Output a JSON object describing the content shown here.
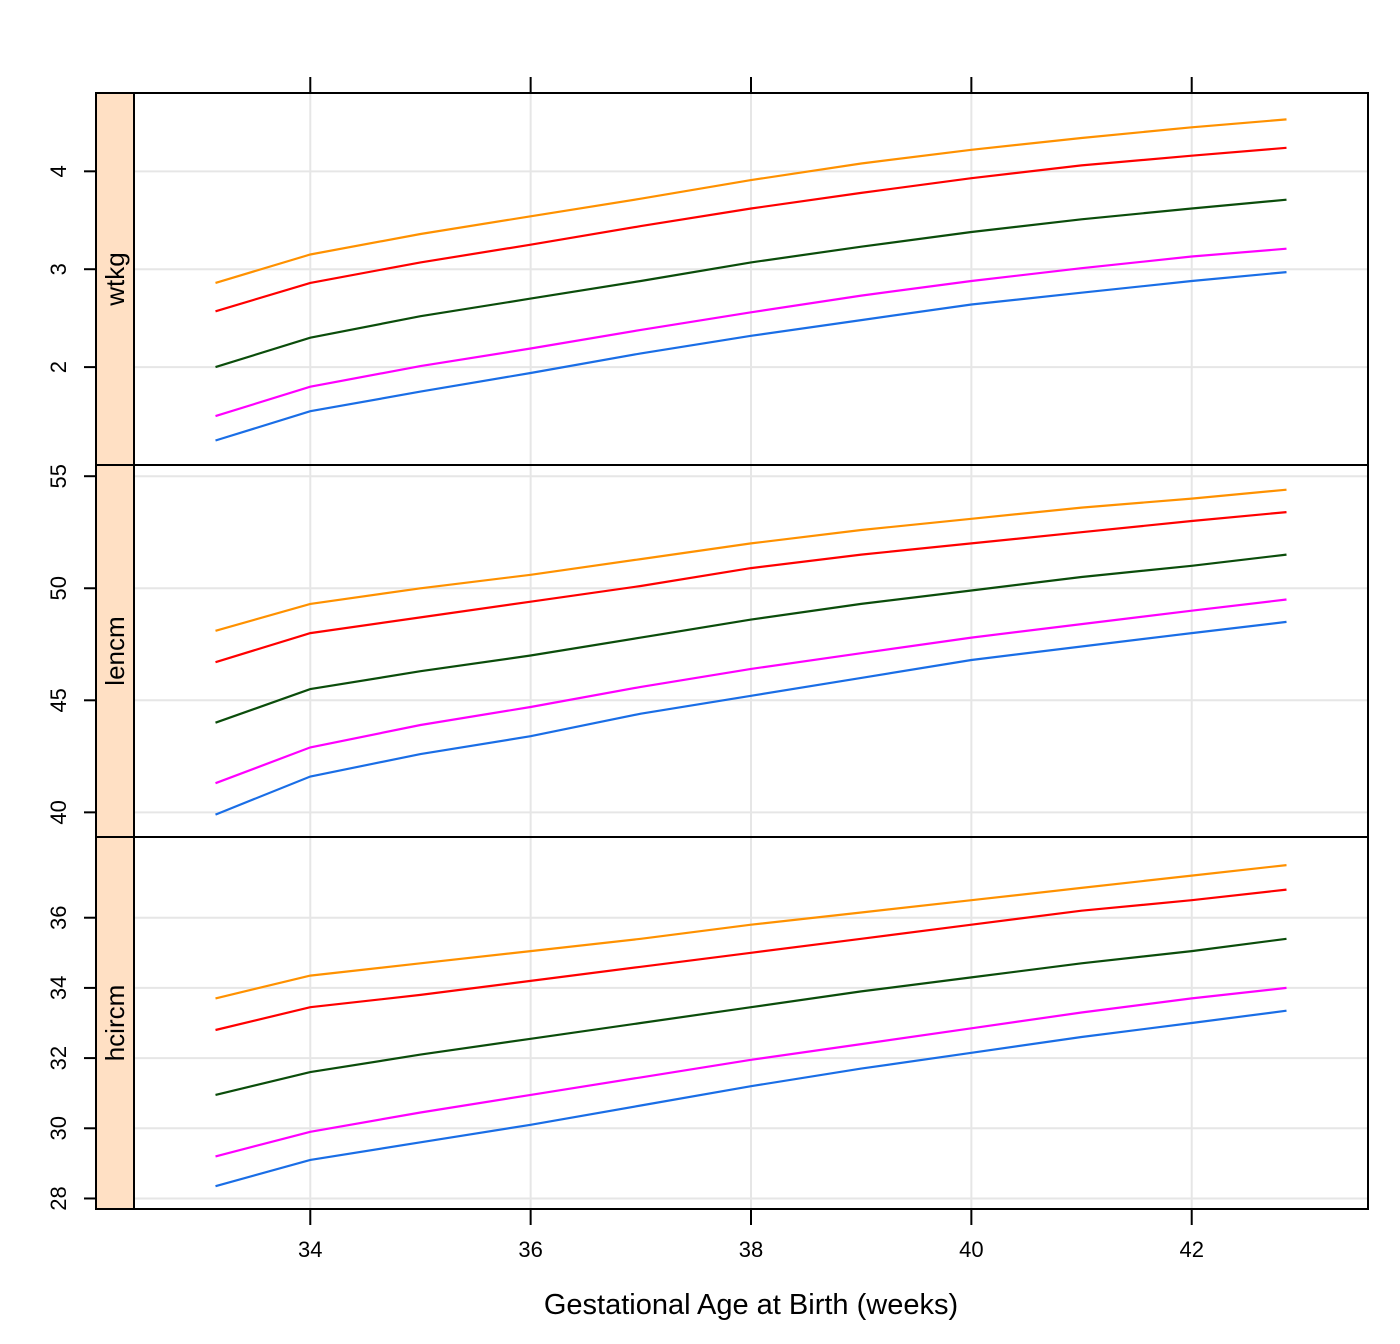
{
  "chart_data": {
    "type": "line",
    "xlabel": "Gestational Age at Birth (weeks)",
    "x_ticks": [
      34,
      36,
      38,
      40,
      42
    ],
    "xlim": [
      32.4,
      43.6
    ],
    "grid": true,
    "x": [
      33.14,
      34,
      35,
      36,
      37,
      38,
      39,
      40,
      41,
      42,
      42.86
    ],
    "series_colors": [
      "#1a6ee6",
      "#ff00ff",
      "#0b4d0b",
      "#ff0000",
      "#ff9100"
    ],
    "strip_color": "#ffe0c4",
    "panels": [
      {
        "strip": "wtkg",
        "y_ticks": [
          2,
          3,
          4
        ],
        "ylim": [
          1.0,
          4.8
        ],
        "series": [
          {
            "values": [
              1.25,
              1.55,
              1.75,
              1.94,
              2.14,
              2.32,
              2.48,
              2.64,
              2.76,
              2.88,
              2.97
            ]
          },
          {
            "values": [
              1.5,
              1.8,
              2.01,
              2.19,
              2.38,
              2.56,
              2.73,
              2.88,
              3.01,
              3.13,
              3.21
            ]
          },
          {
            "values": [
              2.0,
              2.3,
              2.52,
              2.7,
              2.88,
              3.07,
              3.23,
              3.38,
              3.51,
              3.62,
              3.71
            ]
          },
          {
            "values": [
              2.57,
              2.86,
              3.07,
              3.25,
              3.44,
              3.62,
              3.78,
              3.93,
              4.06,
              4.16,
              4.24
            ]
          },
          {
            "values": [
              2.86,
              3.15,
              3.36,
              3.54,
              3.72,
              3.91,
              4.08,
              4.22,
              4.34,
              4.45,
              4.53
            ]
          }
        ]
      },
      {
        "strip": "lencm",
        "y_ticks": [
          40,
          45,
          50,
          55
        ],
        "ylim": [
          38.9,
          55.5
        ],
        "series": [
          {
            "values": [
              39.9,
              41.6,
              42.6,
              43.4,
              44.4,
              45.2,
              46.0,
              46.8,
              47.4,
              48.0,
              48.5
            ]
          },
          {
            "values": [
              41.3,
              42.9,
              43.9,
              44.7,
              45.6,
              46.4,
              47.1,
              47.8,
              48.4,
              49.0,
              49.5
            ]
          },
          {
            "values": [
              44.0,
              45.5,
              46.3,
              47.0,
              47.8,
              48.6,
              49.3,
              49.9,
              50.5,
              51.0,
              51.5
            ]
          },
          {
            "values": [
              46.7,
              48.0,
              48.7,
              49.4,
              50.1,
              50.9,
              51.5,
              52.0,
              52.5,
              53.0,
              53.4
            ]
          },
          {
            "values": [
              48.1,
              49.3,
              50.0,
              50.6,
              51.3,
              52.0,
              52.6,
              53.1,
              53.6,
              54.0,
              54.4
            ]
          }
        ]
      },
      {
        "strip": "hcircm",
        "y_ticks": [
          28,
          30,
          32,
          34,
          36
        ],
        "ylim": [
          27.7,
          38.3
        ],
        "series": [
          {
            "values": [
              28.35,
              29.1,
              29.6,
              30.1,
              30.65,
              31.2,
              31.7,
              32.15,
              32.6,
              33.0,
              33.35
            ]
          },
          {
            "values": [
              29.2,
              29.9,
              30.45,
              30.95,
              31.45,
              31.95,
              32.4,
              32.85,
              33.3,
              33.7,
              34.0
            ]
          },
          {
            "values": [
              30.95,
              31.6,
              32.1,
              32.55,
              33.0,
              33.45,
              33.9,
              34.3,
              34.7,
              35.05,
              35.4
            ]
          },
          {
            "values": [
              32.8,
              33.45,
              33.8,
              34.2,
              34.6,
              35.0,
              35.4,
              35.8,
              36.2,
              36.5,
              36.8
            ]
          },
          {
            "values": [
              33.7,
              34.35,
              34.7,
              35.05,
              35.4,
              35.8,
              36.15,
              36.5,
              36.85,
              37.2,
              37.5
            ]
          }
        ]
      }
    ]
  }
}
